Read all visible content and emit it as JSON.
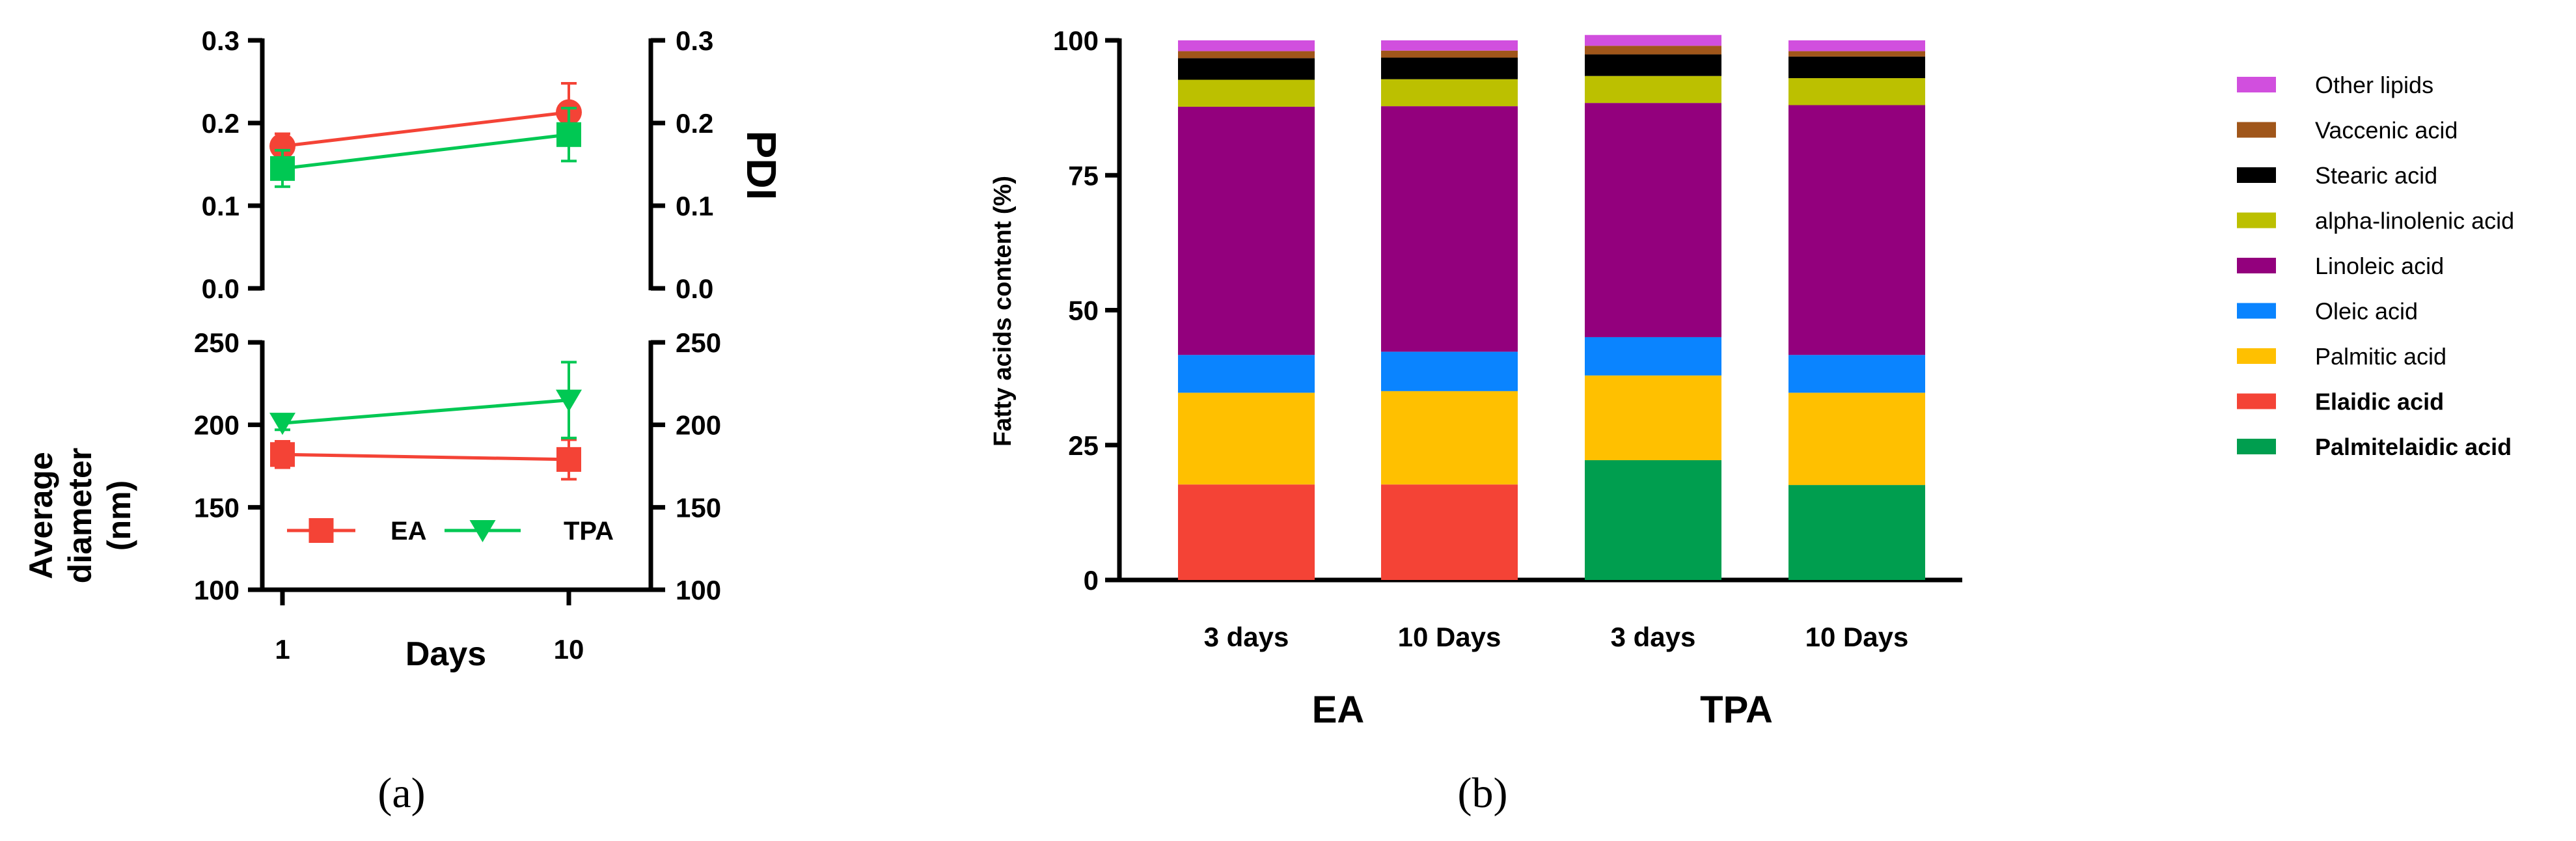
{
  "colors": {
    "EA": "#f44336",
    "TPA": "#00c853",
    "axis": "#000000"
  },
  "chart_data": [
    {
      "id": "panel-a-pdi",
      "type": "line",
      "ylabel_right": "PDI",
      "ylim": [
        0.0,
        0.3
      ],
      "yticks": [
        "0.0",
        "0.1",
        "0.2",
        "0.3"
      ],
      "x": [
        1,
        10
      ],
      "series": [
        {
          "name": "EA",
          "values": [
            0.172,
            0.213
          ],
          "error": [
            0.015,
            0.035
          ],
          "marker": "circle"
        },
        {
          "name": "TPA",
          "values": [
            0.145,
            0.186
          ],
          "error": [
            0.022,
            0.032
          ],
          "marker": "square"
        }
      ]
    },
    {
      "id": "panel-a-diameter",
      "type": "line",
      "ylabel_left": [
        "Average",
        "diameter",
        "(nm)"
      ],
      "ylim": [
        100,
        250
      ],
      "yticks": [
        "100",
        "150",
        "200",
        "250"
      ],
      "x": [
        1,
        10
      ],
      "xticks": [
        "1",
        "10"
      ],
      "xlabel": "Days",
      "series": [
        {
          "name": "EA",
          "values": [
            182,
            179
          ],
          "error": [
            8,
            12
          ],
          "marker": "square"
        },
        {
          "name": "TPA",
          "values": [
            201,
            215
          ],
          "error": [
            4,
            23
          ],
          "marker": "triangle-down"
        }
      ],
      "legend": [
        {
          "label": "EA",
          "series": "EA"
        },
        {
          "label": "TPA",
          "series": "TPA"
        }
      ]
    },
    {
      "id": "panel-b",
      "type": "bar",
      "stacked": true,
      "ylabel": "Fatty acids content (%)",
      "ylim": [
        0,
        100
      ],
      "yticks": [
        "0",
        "25",
        "50",
        "75",
        "100"
      ],
      "categories": [
        "3 days",
        "10 Days",
        "3 days",
        "10 Days"
      ],
      "groups": [
        {
          "label": "EA",
          "categories": [
            0,
            1
          ]
        },
        {
          "label": "TPA",
          "categories": [
            2,
            3
          ]
        }
      ],
      "series": [
        {
          "name": "Elaidic acid",
          "color": "#f44336",
          "values": [
            17.7,
            17.7,
            0,
            0
          ],
          "bold": true
        },
        {
          "name": "Palmitelaidic acid",
          "color": "#009e4f",
          "values": [
            0,
            0,
            22.2,
            17.6
          ],
          "bold": true
        },
        {
          "name": "Palmitic acid",
          "color": "#ffc000",
          "values": [
            17.0,
            17.3,
            15.7,
            17.1
          ],
          "bold": false
        },
        {
          "name": "Oleic acid",
          "color": "#0a84ff",
          "values": [
            7.0,
            7.3,
            7.1,
            7.0
          ],
          "bold": false
        },
        {
          "name": "Linoleic acid",
          "color": "#93007d",
          "values": [
            46.0,
            45.5,
            43.4,
            46.3
          ],
          "bold": false
        },
        {
          "name": "alpha-linolenic acid",
          "color": "#bcc000",
          "values": [
            5.0,
            5.0,
            5.0,
            5.0
          ],
          "bold": false
        },
        {
          "name": "Stearic acid",
          "color": "#000000",
          "values": [
            4.0,
            4.0,
            4.0,
            4.0
          ],
          "bold": false
        },
        {
          "name": "Vaccenic acid",
          "color": "#a0561a",
          "values": [
            1.3,
            1.3,
            1.6,
            1.0
          ],
          "bold": false
        },
        {
          "name": "Other lipids",
          "color": "#d14fde",
          "values": [
            2.0,
            1.9,
            2.0,
            2.0
          ],
          "bold": false
        }
      ],
      "legend_order": [
        "Other lipids",
        "Vaccenic acid",
        "Stearic acid",
        "alpha-linolenic acid",
        "Linoleic acid",
        "Oleic acid",
        "Palmitic acid",
        "Elaidic acid",
        "Palmitelaidic acid"
      ]
    }
  ],
  "panel_labels": {
    "a": "(a)",
    "b": "(b)"
  }
}
